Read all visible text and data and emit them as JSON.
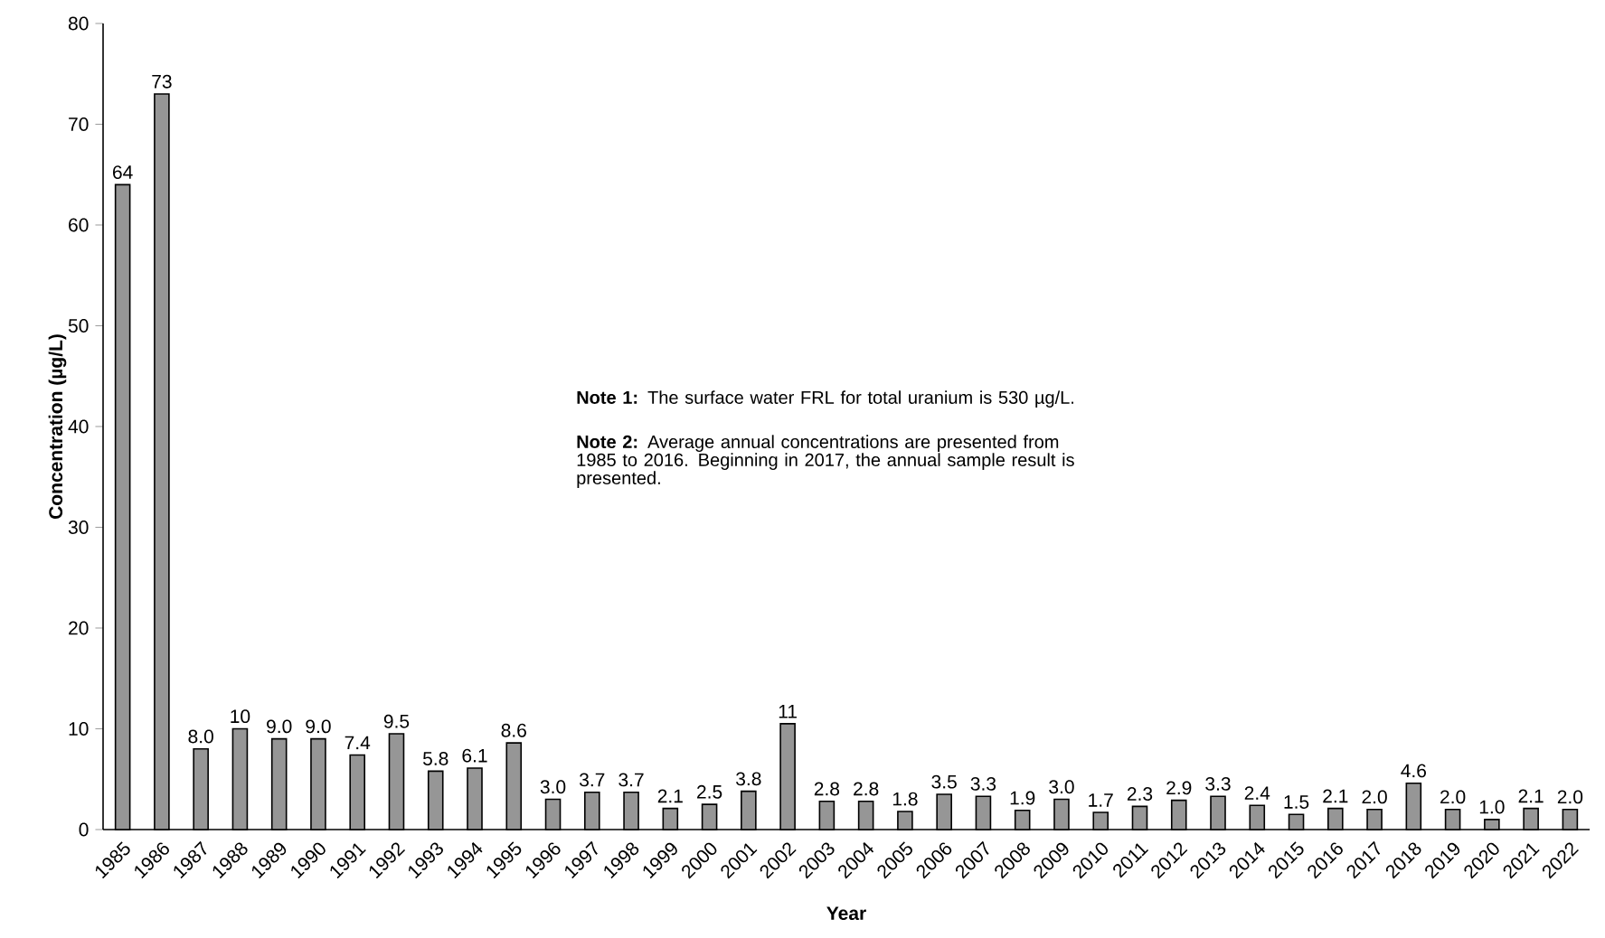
{
  "chart_data": {
    "type": "bar",
    "xlabel": "Year",
    "ylabel": "Concentration (µg/L)",
    "categories": [
      "1985",
      "1986",
      "1987",
      "1988",
      "1989",
      "1990",
      "1991",
      "1992",
      "1993",
      "1994",
      "1995",
      "1996",
      "1997",
      "1998",
      "1999",
      "2000",
      "2001",
      "2002",
      "2003",
      "2004",
      "2005",
      "2006",
      "2007",
      "2008",
      "2009",
      "2010",
      "2011",
      "2012",
      "2013",
      "2014",
      "2015",
      "2016",
      "2017",
      "2018",
      "2019",
      "2020",
      "2021",
      "2022"
    ],
    "values": [
      64,
      73,
      8.0,
      10,
      9.0,
      9.0,
      7.4,
      9.5,
      5.8,
      6.1,
      8.6,
      3.0,
      3.7,
      3.7,
      2.1,
      2.5,
      3.8,
      10.5,
      2.8,
      2.8,
      1.8,
      3.5,
      3.3,
      1.9,
      3.0,
      1.7,
      2.3,
      2.9,
      3.3,
      2.4,
      1.5,
      2.1,
      2.0,
      4.6,
      2.0,
      1.0,
      2.1,
      2.0
    ],
    "value_labels": [
      "64",
      "73",
      "8.0",
      "10",
      "9.0",
      "9.0",
      "7.4",
      "9.5",
      "5.8",
      "6.1",
      "8.6",
      "3.0",
      "3.7",
      "3.7",
      "2.1",
      "2.5",
      "3.8",
      "11",
      "2.8",
      "2.8",
      "1.8",
      "3.5",
      "3.3",
      "1.9",
      "3.0",
      "1.7",
      "2.3",
      "2.9",
      "3.3",
      "2.4",
      "1.5",
      "2.1",
      "2.0",
      "4.6",
      "2.0",
      "1.0",
      "2.1",
      "2.0"
    ],
    "color": "#969696",
    "ylim": [
      0,
      80
    ],
    "yticks": [
      0,
      10,
      20,
      30,
      40,
      50,
      60,
      70,
      80
    ],
    "grid": false,
    "annotations": [
      "**Note 1:**  The surface water FRL for total uranium is 530 µg/L.",
      "**Note 2:**  Average annual concentrations are presented from 1985 to 2016. Beginning in 2017, the annual sample result is presented."
    ]
  }
}
